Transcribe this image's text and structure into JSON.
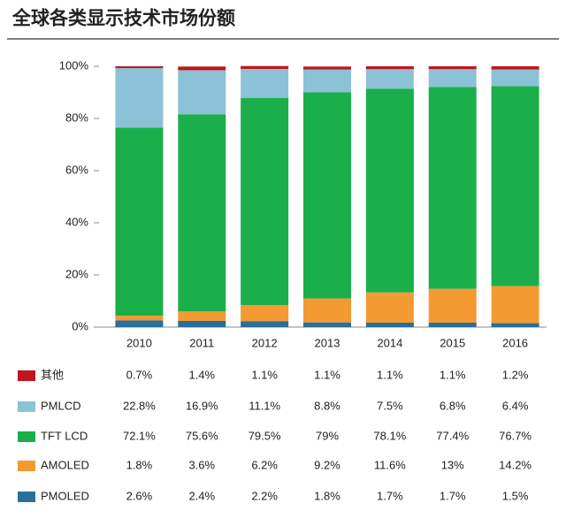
{
  "chart_data": {
    "type": "stacked_bar_100",
    "title": "全球各类显示技术市场份额",
    "categories": [
      "2010",
      "2011",
      "2012",
      "2013",
      "2014",
      "2015",
      "2016"
    ],
    "series": [
      {
        "name": "其他",
        "color": "#c0141e",
        "values": [
          0.7,
          1.4,
          1.1,
          1.1,
          1.1,
          1.1,
          1.2
        ],
        "value_labels": [
          "0.7%",
          "1.4%",
          "1.1%",
          "1.1%",
          "1.1%",
          "1.1%",
          "1.2%"
        ]
      },
      {
        "name": "PMLCD",
        "color": "#8cc2d6",
        "values": [
          22.8,
          16.9,
          11.1,
          8.8,
          7.5,
          6.8,
          6.4
        ],
        "value_labels": [
          "22.8%",
          "16.9%",
          "11.1%",
          "8.8%",
          "7.5%",
          "6.8%",
          "6.4%"
        ]
      },
      {
        "name": "TFT LCD",
        "color": "#1aaf4b",
        "values": [
          72.1,
          75.6,
          79.5,
          79,
          78.1,
          77.4,
          76.7
        ],
        "value_labels": [
          "72.1%",
          "75.6%",
          "79.5%",
          "79%",
          "78.1%",
          "77.4%",
          "76.7%"
        ]
      },
      {
        "name": "AMOLED",
        "color": "#f39a32",
        "values": [
          1.8,
          3.6,
          6.2,
          9.2,
          11.6,
          13,
          14.2
        ],
        "value_labels": [
          "1.8%",
          "3.6%",
          "6.2%",
          "9.2%",
          "11.6%",
          "13%",
          "14.2%"
        ]
      },
      {
        "name": "PMOLED",
        "color": "#2a6e9a",
        "values": [
          2.6,
          2.4,
          2.2,
          1.8,
          1.7,
          1.7,
          1.5
        ],
        "value_labels": [
          "2.6%",
          "2.4%",
          "2.2%",
          "1.8%",
          "1.7%",
          "1.7%",
          "1.5%"
        ]
      }
    ],
    "ylim": [
      0,
      100
    ],
    "yticks": [
      {
        "value": 0,
        "label": "0%"
      },
      {
        "value": 20,
        "label": "20%"
      },
      {
        "value": 40,
        "label": "40%"
      },
      {
        "value": 60,
        "label": "60%"
      },
      {
        "value": 80,
        "label": "80%"
      },
      {
        "value": 100,
        "label": "100%"
      }
    ]
  }
}
